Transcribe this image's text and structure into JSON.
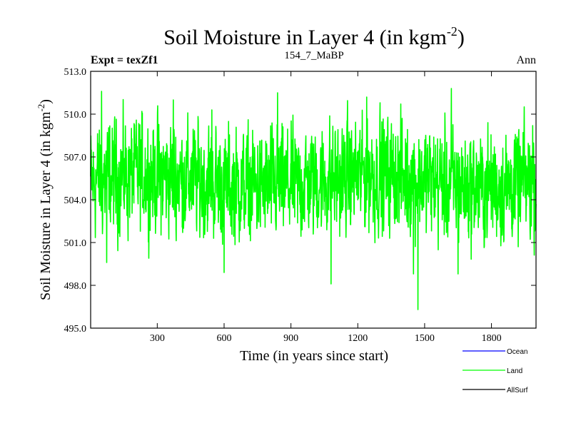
{
  "chart_data": {
    "type": "line",
    "title": "Soil Moisture in Layer 4 (in kgm",
    "title_sup": "-2",
    "title_close": ")",
    "subtitle_left": "Expt = texZf1",
    "subtitle_center": "154_7_MaBP",
    "subtitle_right": "Ann",
    "xlabel": "Time (in years since start)",
    "ylabel": "Soil Moisture in Layer 4 (in kgm",
    "ylabel_sup": "-2",
    "ylabel_close": ")",
    "xlim": [
      1,
      2000
    ],
    "ylim": [
      495.0,
      513.0
    ],
    "xticks": [
      300,
      600,
      900,
      1200,
      1500,
      1800
    ],
    "yticks": [
      495.0,
      498.0,
      501.0,
      504.0,
      507.0,
      510.0,
      513.0
    ],
    "ytick_labels": [
      "495.0",
      "498.0",
      "501.0",
      "504.0",
      "507.0",
      "510.0",
      "513.0"
    ],
    "series": [
      {
        "name": "Ocean",
        "color": "#0000ff",
        "values": []
      },
      {
        "name": "Land",
        "color": "#00ff00",
        "generator": {
          "n": 2000,
          "mean": 505.3,
          "amplitude": 2.0,
          "min_observed": 496.3,
          "max_observed": 511.8
        },
        "extremes": [
          {
            "x": 50,
            "y": 511.6
          },
          {
            "x": 73,
            "y": 499.6
          },
          {
            "x": 372,
            "y": 511.0
          },
          {
            "x": 545,
            "y": 510.3
          },
          {
            "x": 600,
            "y": 498.9
          },
          {
            "x": 840,
            "y": 511.5
          },
          {
            "x": 1080,
            "y": 498.1
          },
          {
            "x": 1240,
            "y": 511.2
          },
          {
            "x": 1300,
            "y": 510.8
          },
          {
            "x": 1450,
            "y": 498.8
          },
          {
            "x": 1470,
            "y": 496.3
          },
          {
            "x": 1620,
            "y": 511.8
          },
          {
            "x": 1650,
            "y": 498.8
          },
          {
            "x": 1985,
            "y": 509.2
          }
        ]
      },
      {
        "name": "AllSurf",
        "color": "#000000",
        "values": []
      }
    ],
    "legend": [
      {
        "label": "Ocean",
        "color": "#0000ff"
      },
      {
        "label": "Land",
        "color": "#00ff00"
      },
      {
        "label": "AllSurf",
        "color": "#000000"
      }
    ],
    "legend_position": "bottom-right",
    "grid": false
  }
}
